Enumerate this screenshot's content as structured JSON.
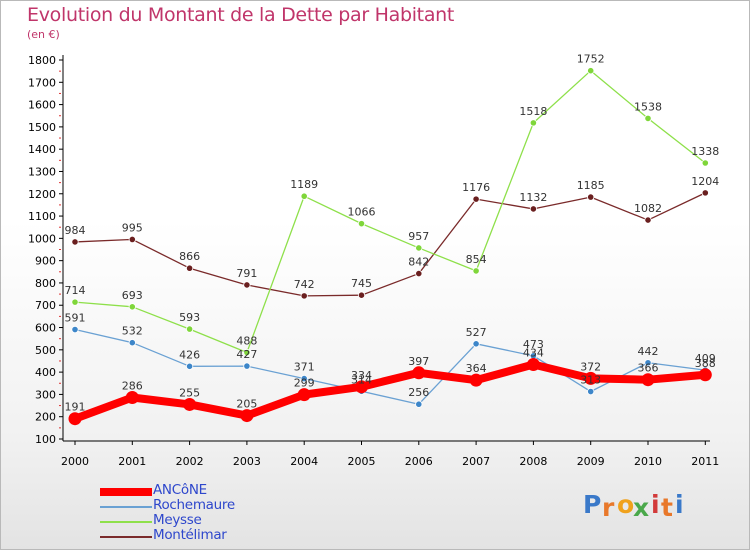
{
  "header": {
    "title": "Evolution du Montant de la Dette par Habitant",
    "subtitle": "(en €)"
  },
  "chart_data": {
    "type": "line",
    "title": "Evolution du Montant de la Dette par Habitant",
    "subtitle": "(en €)",
    "x": [
      "2000",
      "2001",
      "2002",
      "2003",
      "2004",
      "2005",
      "2006",
      "2007",
      "2008",
      "2009",
      "2010",
      "2011"
    ],
    "ylim": [
      100,
      1800
    ],
    "yticks": [
      100,
      200,
      300,
      400,
      500,
      600,
      700,
      800,
      900,
      1000,
      1100,
      1200,
      1300,
      1400,
      1500,
      1600,
      1700,
      1800
    ],
    "grid": false,
    "legend_position": "bottom-left",
    "series": [
      {
        "name": "ANCôNE",
        "color": "#ff0000",
        "marker": "#ff0000",
        "values": [
          191,
          286,
          255,
          205,
          299,
          334,
          397,
          364,
          434,
          372,
          366,
          388
        ],
        "labels": [
          "191",
          "286",
          "255",
          "205",
          "299",
          "334",
          "397",
          "364",
          "434",
          "372",
          "366",
          "388"
        ]
      },
      {
        "name": "Rochemaure",
        "color": "#6aa1d3",
        "marker": "#3d86c9",
        "values": [
          591,
          532,
          426,
          427,
          371,
          314,
          256,
          527,
          473,
          313,
          442,
          409
        ],
        "labels": [
          "591",
          "532",
          "426",
          "427",
          "371",
          "314",
          "256",
          "527",
          "473",
          "313",
          "442",
          "409"
        ]
      },
      {
        "name": "Meysse",
        "color": "#8ee04a",
        "marker": "#7fd63a",
        "values": [
          714,
          693,
          593,
          488,
          1189,
          1066,
          957,
          854,
          1518,
          1752,
          1538,
          1338
        ],
        "labels": [
          "714",
          "693",
          "593",
          "488",
          "1189",
          "1066",
          "957",
          "854",
          "1518",
          "1752",
          "1538",
          "1338"
        ]
      },
      {
        "name": "Montélimar",
        "color": "#7a2a2a",
        "marker": "#6a1f1f",
        "values": [
          984,
          995,
          866,
          791,
          742,
          745,
          842,
          1176,
          1132,
          1185,
          1082,
          1204
        ],
        "labels": [
          "984",
          "995",
          "866",
          "791",
          "742",
          "745",
          "842",
          "1176",
          "1132",
          "1185",
          "1082",
          "1204"
        ]
      }
    ]
  },
  "legend": {
    "items": [
      {
        "label": "ANCôNE",
        "color": "#ff0000"
      },
      {
        "label": "Rochemaure",
        "color": "#6aa1d3"
      },
      {
        "label": "Meysse",
        "color": "#8ee04a"
      },
      {
        "label": "Montélimar",
        "color": "#7a2a2a"
      }
    ]
  },
  "logo": {
    "letters": [
      "P",
      "r",
      "o",
      "x",
      "i",
      "t",
      "i"
    ],
    "colors": [
      "#3a79c9",
      "#e8782a",
      "#f0a21c",
      "#4aa84a",
      "#d23a3a",
      "#e8782a",
      "#3a79c9"
    ]
  }
}
